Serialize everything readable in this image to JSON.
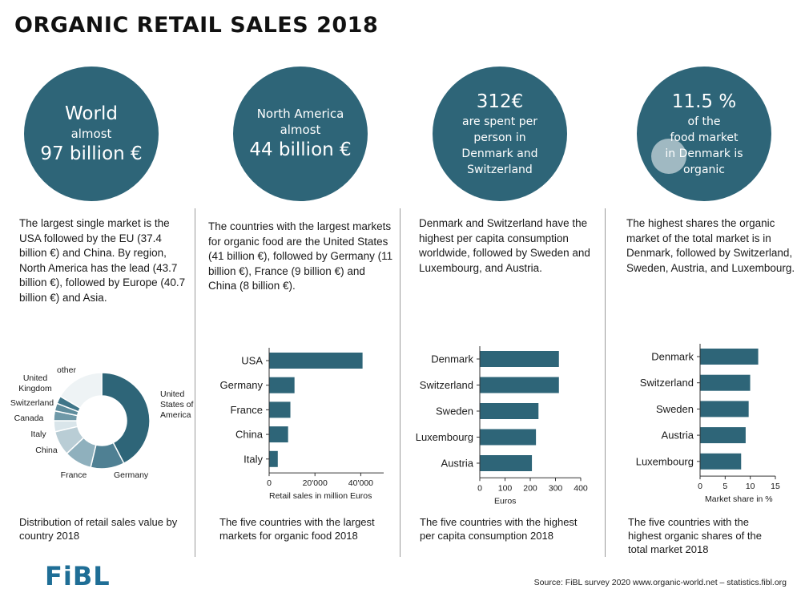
{
  "title": "ORGANIC RETAIL SALES 2018",
  "colors": {
    "primary": "#2e6578",
    "logo": "#1f6e96"
  },
  "circles": [
    {
      "lines": [
        "World",
        "almost",
        "97 billion €"
      ]
    },
    {
      "lines": [
        "North America",
        "almost",
        "44 billion €"
      ]
    },
    {
      "lines": [
        "312€",
        "are spent per",
        "person in",
        "Denmark and",
        "Switzerland"
      ]
    },
    {
      "lines": [
        "11.5 %",
        "of  the",
        "food market",
        "in Denmark is",
        "organic"
      ]
    }
  ],
  "descriptions": [
    "The largest single market is the USA followed by the EU (37.4 billion €) and China. By region, North America has the lead (43.7 billion €), followed by Europe (40.7 billion €) and Asia.",
    "The countries with the largest markets for organic food are the United States (41 billion €), followed by Germany (11 billion €), France (9 billion €) and China (8 billion €).",
    "Denmark and Switzerland have the highest per capita consumption worldwide, followed by Sweden and Luxembourg, and Austria.",
    "The highest shares the organic market of the total market is in Denmark, followed by Switzerland, Sweden, Austria, and Luxembourg."
  ],
  "captions": [
    "Distribution of retail sales value by country 2018",
    "The five countries with the largest markets for organic food 2018",
    "The five countries with the highest per capita consumption 2018",
    "The five countries with the highest organic shares of the total market 2018"
  ],
  "chart_data": [
    {
      "type": "pie",
      "donut": true,
      "labels": [
        "United States of America",
        "Germany",
        "France",
        "China",
        "Italy",
        "Canada",
        "Switzerland",
        "United Kingdom",
        "other"
      ],
      "values": [
        41,
        11,
        9,
        8,
        3.6,
        3.2,
        2.5,
        2.5,
        16
      ],
      "colors": [
        "#2e6578",
        "#4f8093",
        "#8fb0bd",
        "#b9cdd5",
        "#d9e5ea",
        "#6f99a8",
        "#5e8c9c",
        "#3f7588",
        "#eef3f5"
      ],
      "label_lines": [
        [
          "United",
          "States of",
          "America"
        ],
        [
          "Germany"
        ],
        [
          "France"
        ],
        [
          "China"
        ],
        [
          "Italy"
        ],
        [
          "Canada"
        ],
        [
          "Switzerland"
        ],
        [
          "United",
          "Kingdom"
        ],
        [
          "other"
        ]
      ]
    },
    {
      "type": "bar",
      "orientation": "horizontal",
      "categories": [
        "USA",
        "Germany",
        "France",
        "China",
        "Italy"
      ],
      "values": [
        40600,
        10900,
        9100,
        8100,
        3600
      ],
      "xlabel": "Retail sales in million Euros",
      "xlim": [
        0,
        50000
      ],
      "ticks": [
        0,
        20000,
        40000
      ],
      "tick_labels": [
        "0",
        "20'000",
        "40'000"
      ]
    },
    {
      "type": "bar",
      "orientation": "horizontal",
      "categories": [
        "Denmark",
        "Switzerland",
        "Sweden",
        "Luxembourg",
        "Austria"
      ],
      "values": [
        312,
        312,
        231,
        221,
        205
      ],
      "xlabel": "Euros",
      "xlim": [
        0,
        400
      ],
      "ticks": [
        0,
        100,
        200,
        300,
        400
      ],
      "tick_labels": [
        "0",
        "100",
        "200",
        "300",
        "400"
      ]
    },
    {
      "type": "bar",
      "orientation": "horizontal",
      "categories": [
        "Denmark",
        "Switzerland",
        "Sweden",
        "Austria",
        "Luxembourg"
      ],
      "values": [
        11.5,
        9.9,
        9.6,
        9.0,
        8.1
      ],
      "xlabel": "Market share in %",
      "xlim": [
        0,
        15
      ],
      "ticks": [
        0,
        5,
        10,
        15
      ],
      "tick_labels": [
        "0",
        "5",
        "10",
        "15"
      ]
    }
  ],
  "footer": {
    "logo": "FiBL",
    "source": "Source: FiBL survey 2020  www.organic-world.net – statistics.fibl.org"
  }
}
